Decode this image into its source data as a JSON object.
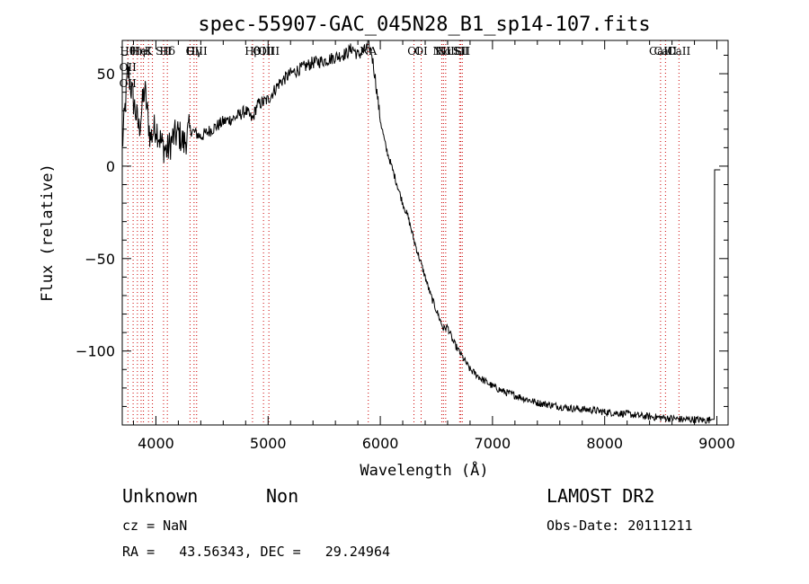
{
  "chart_data": {
    "type": "line",
    "title": "spec-55907-GAC_045N28_B1_sp14-107.fits",
    "xlabel": "Wavelength (Å)",
    "ylabel": "Flux (relative)",
    "xlim": [
      3700,
      9100
    ],
    "ylim": [
      -140,
      68
    ],
    "x_ticks": [
      4000,
      5000,
      6000,
      7000,
      8000,
      9000
    ],
    "x_tick_labels": [
      "4000",
      "5000",
      "6000",
      "7000",
      "8000",
      "9000"
    ],
    "y_ticks": [
      50,
      0,
      -50,
      -100
    ],
    "y_tick_labels": [
      "50",
      "0",
      "−50",
      "−100"
    ],
    "grid": false,
    "series": [
      {
        "x": [
          3700,
          3750,
          3800,
          3850,
          3900,
          3950,
          4000,
          4050,
          4100,
          4150,
          4200,
          4250,
          4300,
          4350,
          4400,
          4500,
          4600,
          4700,
          4800,
          4861,
          4900,
          5000,
          5100,
          5200,
          5300,
          5400,
          5500,
          5600,
          5700,
          5750,
          5800,
          5850,
          5893,
          5920,
          5950,
          6000,
          6050,
          6100,
          6150,
          6200,
          6250,
          6300,
          6350,
          6400,
          6450,
          6500,
          6563,
          6600,
          6650,
          6700,
          6750,
          6800,
          6900,
          7000,
          7100,
          7200,
          7300,
          7400,
          7500,
          7600,
          7700,
          7800,
          7900,
          8000,
          8100,
          8200,
          8300,
          8400,
          8500,
          8600,
          8700,
          8800,
          8900,
          8960,
          8975,
          8980,
          9010,
          9030
        ],
        "y": [
          10,
          52,
          35,
          20,
          42,
          15,
          22,
          12,
          8,
          15,
          18,
          12,
          20,
          18,
          16,
          20,
          24,
          26,
          30,
          25,
          33,
          36,
          45,
          50,
          53,
          56,
          57,
          59,
          61,
          64,
          60,
          62,
          65,
          62,
          50,
          25,
          10,
          0,
          -10,
          -20,
          -28,
          -40,
          -50,
          -60,
          -70,
          -78,
          -88,
          -87,
          -95,
          -100,
          -105,
          -110,
          -115,
          -119,
          -122,
          -124,
          -126,
          -128,
          -129,
          -130,
          -131,
          -131.5,
          -132,
          -133,
          -133.5,
          -134,
          -135,
          -135.5,
          -136,
          -136.5,
          -137,
          -137,
          -137.5,
          -137,
          -137,
          -2,
          -2,
          -2
        ]
      }
    ],
    "lines": [
      {
        "x": 3750,
        "labels": [
          "Hθ",
          "OII",
          "OII"
        ]
      },
      {
        "x": 3797,
        "labels": []
      },
      {
        "x": 3835,
        "labels": [
          "Hη"
        ]
      },
      {
        "x": 3868,
        "labels": [
          "HeI"
        ]
      },
      {
        "x": 3889,
        "labels": []
      },
      {
        "x": 3934,
        "labels": [
          "K"
        ]
      },
      {
        "x": 3969,
        "labels": []
      },
      {
        "x": 4068,
        "labels": [
          "SII"
        ]
      },
      {
        "x": 4102,
        "labels": [
          "Hδ"
        ]
      },
      {
        "x": 4304,
        "labels": [
          "G"
        ]
      },
      {
        "x": 4340,
        "labels": [
          "Hγ"
        ]
      },
      {
        "x": 4363,
        "labels": [
          "OIII"
        ]
      },
      {
        "x": 4861,
        "labels": [
          "Hβ"
        ]
      },
      {
        "x": 4959,
        "labels": [
          "OIII"
        ]
      },
      {
        "x": 5007,
        "labels": [
          "OIII"
        ]
      },
      {
        "x": 5893,
        "labels": [
          "NA"
        ]
      },
      {
        "x": 6300,
        "labels": [
          "OI"
        ]
      },
      {
        "x": 6364,
        "labels": [
          "OI"
        ]
      },
      {
        "x": 6548,
        "labels": [
          "NII"
        ]
      },
      {
        "x": 6563,
        "labels": [
          "Hα"
        ]
      },
      {
        "x": 6583,
        "labels": [
          "NII"
        ]
      },
      {
        "x": 6707,
        "labels": [
          "Li"
        ]
      },
      {
        "x": 6717,
        "labels": [
          "SII"
        ]
      },
      {
        "x": 6731,
        "labels": [
          "SII"
        ]
      },
      {
        "x": 8498,
        "labels": [
          "CaII"
        ]
      },
      {
        "x": 8542,
        "labels": [
          "CaII"
        ]
      },
      {
        "x": 8662,
        "labels": [
          "CaII"
        ]
      }
    ]
  },
  "info": {
    "classification": "Unknown",
    "subclass": "Non",
    "redshift": "cz = NaN",
    "coords": "RA =   43.56343, DEC =   29.24964",
    "survey": "LAMOST DR2",
    "obs_date": "Obs-Date: 20111211"
  },
  "colors": {
    "line": "#000000",
    "marker_line": "#cc0000",
    "background": "#ffffff"
  }
}
